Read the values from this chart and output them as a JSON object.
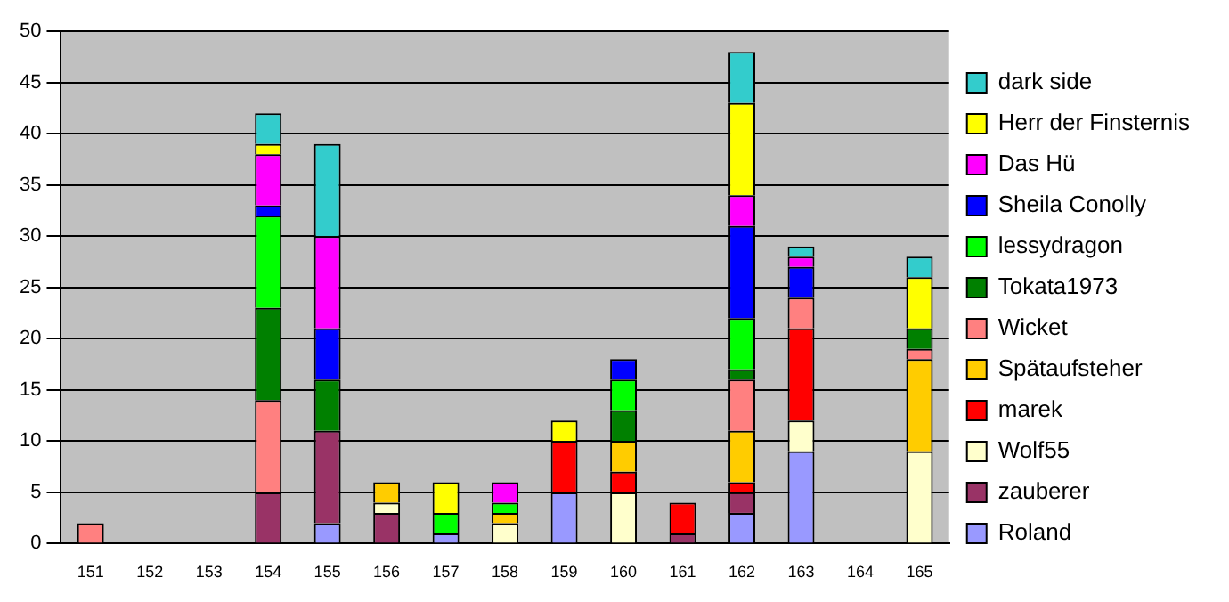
{
  "chart_data": {
    "type": "bar",
    "stacked": true,
    "legend": "right",
    "grid": "y",
    "categories": [
      "151",
      "152",
      "153",
      "154",
      "155",
      "156",
      "157",
      "158",
      "159",
      "160",
      "161",
      "162",
      "163",
      "164",
      "165"
    ],
    "ylim": [
      0,
      50
    ],
    "yticks": [
      0,
      5,
      10,
      15,
      20,
      25,
      30,
      35,
      40,
      45,
      50
    ],
    "series": [
      {
        "name": "Roland",
        "color": "#9999ff",
        "values": [
          0,
          0,
          0,
          0,
          2,
          0,
          1,
          0,
          5,
          0,
          0,
          3,
          9,
          0,
          0
        ]
      },
      {
        "name": "zauberer",
        "color": "#993366",
        "values": [
          0,
          0,
          0,
          5,
          9,
          3,
          0,
          0,
          0,
          0,
          1,
          2,
          0,
          0,
          0
        ]
      },
      {
        "name": "Wolf55",
        "color": "#ffffcc",
        "values": [
          0,
          0,
          0,
          0,
          0,
          1,
          0,
          2,
          0,
          5,
          0,
          0,
          3,
          0,
          9
        ]
      },
      {
        "name": "marek",
        "color": "#ff0000",
        "values": [
          0,
          0,
          0,
          0,
          0,
          0,
          0,
          0,
          5,
          2,
          3,
          1,
          9,
          0,
          0
        ]
      },
      {
        "name": "Spätaufsteher",
        "color": "#ffcc00",
        "values": [
          0,
          0,
          0,
          0,
          0,
          2,
          0,
          1,
          0,
          3,
          0,
          5,
          0,
          0,
          9
        ]
      },
      {
        "name": "Wicket",
        "color": "#ff8080",
        "values": [
          2,
          0,
          0,
          9,
          0,
          0,
          0,
          0,
          0,
          0,
          0,
          5,
          3,
          0,
          1
        ]
      },
      {
        "name": "Tokata1973",
        "color": "#008000",
        "values": [
          0,
          0,
          0,
          9,
          5,
          0,
          0,
          0,
          0,
          3,
          0,
          1,
          0,
          0,
          2
        ]
      },
      {
        "name": "lessydragon",
        "color": "#00ff00",
        "values": [
          0,
          0,
          0,
          9,
          0,
          0,
          2,
          1,
          0,
          3,
          0,
          5,
          0,
          0,
          0
        ]
      },
      {
        "name": "Sheila Conolly",
        "color": "#0000ff",
        "values": [
          0,
          0,
          0,
          1,
          5,
          0,
          0,
          0,
          0,
          2,
          0,
          9,
          3,
          0,
          0
        ]
      },
      {
        "name": "Das Hü",
        "color": "#ff00ff",
        "values": [
          0,
          0,
          0,
          5,
          9,
          0,
          0,
          2,
          0,
          0,
          0,
          3,
          1,
          0,
          0
        ]
      },
      {
        "name": "Herr der Finsternis",
        "color": "#ffff00",
        "values": [
          0,
          0,
          0,
          1,
          0,
          0,
          3,
          0,
          2,
          0,
          0,
          9,
          0,
          0,
          5
        ]
      },
      {
        "name": "dark side",
        "color": "#33cccc",
        "values": [
          0,
          0,
          0,
          3,
          9,
          0,
          0,
          0,
          0,
          0,
          0,
          5,
          1,
          0,
          2
        ]
      }
    ]
  }
}
